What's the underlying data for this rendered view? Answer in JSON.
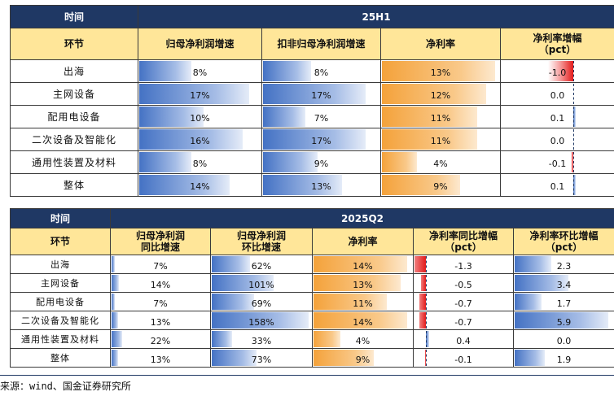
{
  "t1": {
    "header_time": "时间",
    "header_period": "25H1",
    "col_label": "环节",
    "columns": [
      "归母净利润增速",
      "扣非归母净利润增速",
      "净利率",
      "净利率增幅\n（pct）"
    ],
    "rows": [
      {
        "label": "出海",
        "c1": "8%",
        "c2": "8%",
        "c3": "13%",
        "c4": "-1.0",
        "v1": 8,
        "v2": 8,
        "v3": 13,
        "v4": -1.0
      },
      {
        "label": "主网设备",
        "c1": "17%",
        "c2": "17%",
        "c3": "12%",
        "c4": "0.0",
        "v1": 17,
        "v2": 17,
        "v3": 12,
        "v4": 0.0
      },
      {
        "label": "配用电设备",
        "c1": "10%",
        "c2": "7%",
        "c3": "11%",
        "c4": "0.1",
        "v1": 10,
        "v2": 7,
        "v3": 11,
        "v4": 0.1
      },
      {
        "label": "二次设备及智能化",
        "c1": "16%",
        "c2": "17%",
        "c3": "11%",
        "c4": "0.0",
        "v1": 16,
        "v2": 17,
        "v3": 11,
        "v4": 0.0
      },
      {
        "label": "通用性装置及材料",
        "c1": "8%",
        "c2": "9%",
        "c3": "4%",
        "c4": "-0.1",
        "v1": 8,
        "v2": 9,
        "v3": 4,
        "v4": -0.1
      },
      {
        "label": "整体",
        "c1": "14%",
        "c2": "13%",
        "c3": "9%",
        "c4": "0.1",
        "v1": 14,
        "v2": 13,
        "v3": 9,
        "v4": 0.1
      }
    ]
  },
  "t2": {
    "header_time": "时间",
    "header_period": "2025Q2",
    "col_label": "环节",
    "columns": [
      "归母净利润\n同比增速",
      "归母净利润\n环比增速",
      "净利率",
      "净利率同比增幅\n（pct）",
      "净利率环比增幅\n（pct）"
    ],
    "rows": [
      {
        "label": "出海",
        "c1": "7%",
        "c2": "62%",
        "c3": "14%",
        "c4": "-1.3",
        "c5": "2.3",
        "v1": 7,
        "v2": 62,
        "v3": 14,
        "v4": -1.3,
        "v5": 2.3
      },
      {
        "label": "主网设备",
        "c1": "14%",
        "c2": "101%",
        "c3": "13%",
        "c4": "-0.5",
        "c5": "3.4",
        "v1": 14,
        "v2": 101,
        "v3": 13,
        "v4": -0.5,
        "v5": 3.4
      },
      {
        "label": "配用电设备",
        "c1": "7%",
        "c2": "69%",
        "c3": "11%",
        "c4": "-0.7",
        "c5": "1.7",
        "v1": 7,
        "v2": 69,
        "v3": 11,
        "v4": -0.7,
        "v5": 1.7
      },
      {
        "label": "二次设备及智能化",
        "c1": "13%",
        "c2": "158%",
        "c3": "14%",
        "c4": "-0.7",
        "c5": "5.9",
        "v1": 13,
        "v2": 158,
        "v3": 14,
        "v4": -0.7,
        "v5": 5.9
      },
      {
        "label": "通用性装置及材料",
        "c1": "22%",
        "c2": "33%",
        "c3": "4%",
        "c4": "0.4",
        "c5": "0.0",
        "v1": 22,
        "v2": 33,
        "v3": 4,
        "v4": 0.4,
        "v5": 0.0
      },
      {
        "label": "整体",
        "c1": "13%",
        "c2": "73%",
        "c3": "9%",
        "c4": "-0.1",
        "c5": "1.9",
        "v1": 13,
        "v2": 73,
        "v3": 9,
        "v4": -0.1,
        "v5": 1.9
      }
    ]
  },
  "source": "来源：wind、国金证券研究所",
  "colors": {
    "navy": "#1f3864",
    "header_yellow": "#ffe699",
    "blue_bar": "#4472c4",
    "orange_bar": "#f4a23b",
    "red_bar": "#e31b1b"
  }
}
